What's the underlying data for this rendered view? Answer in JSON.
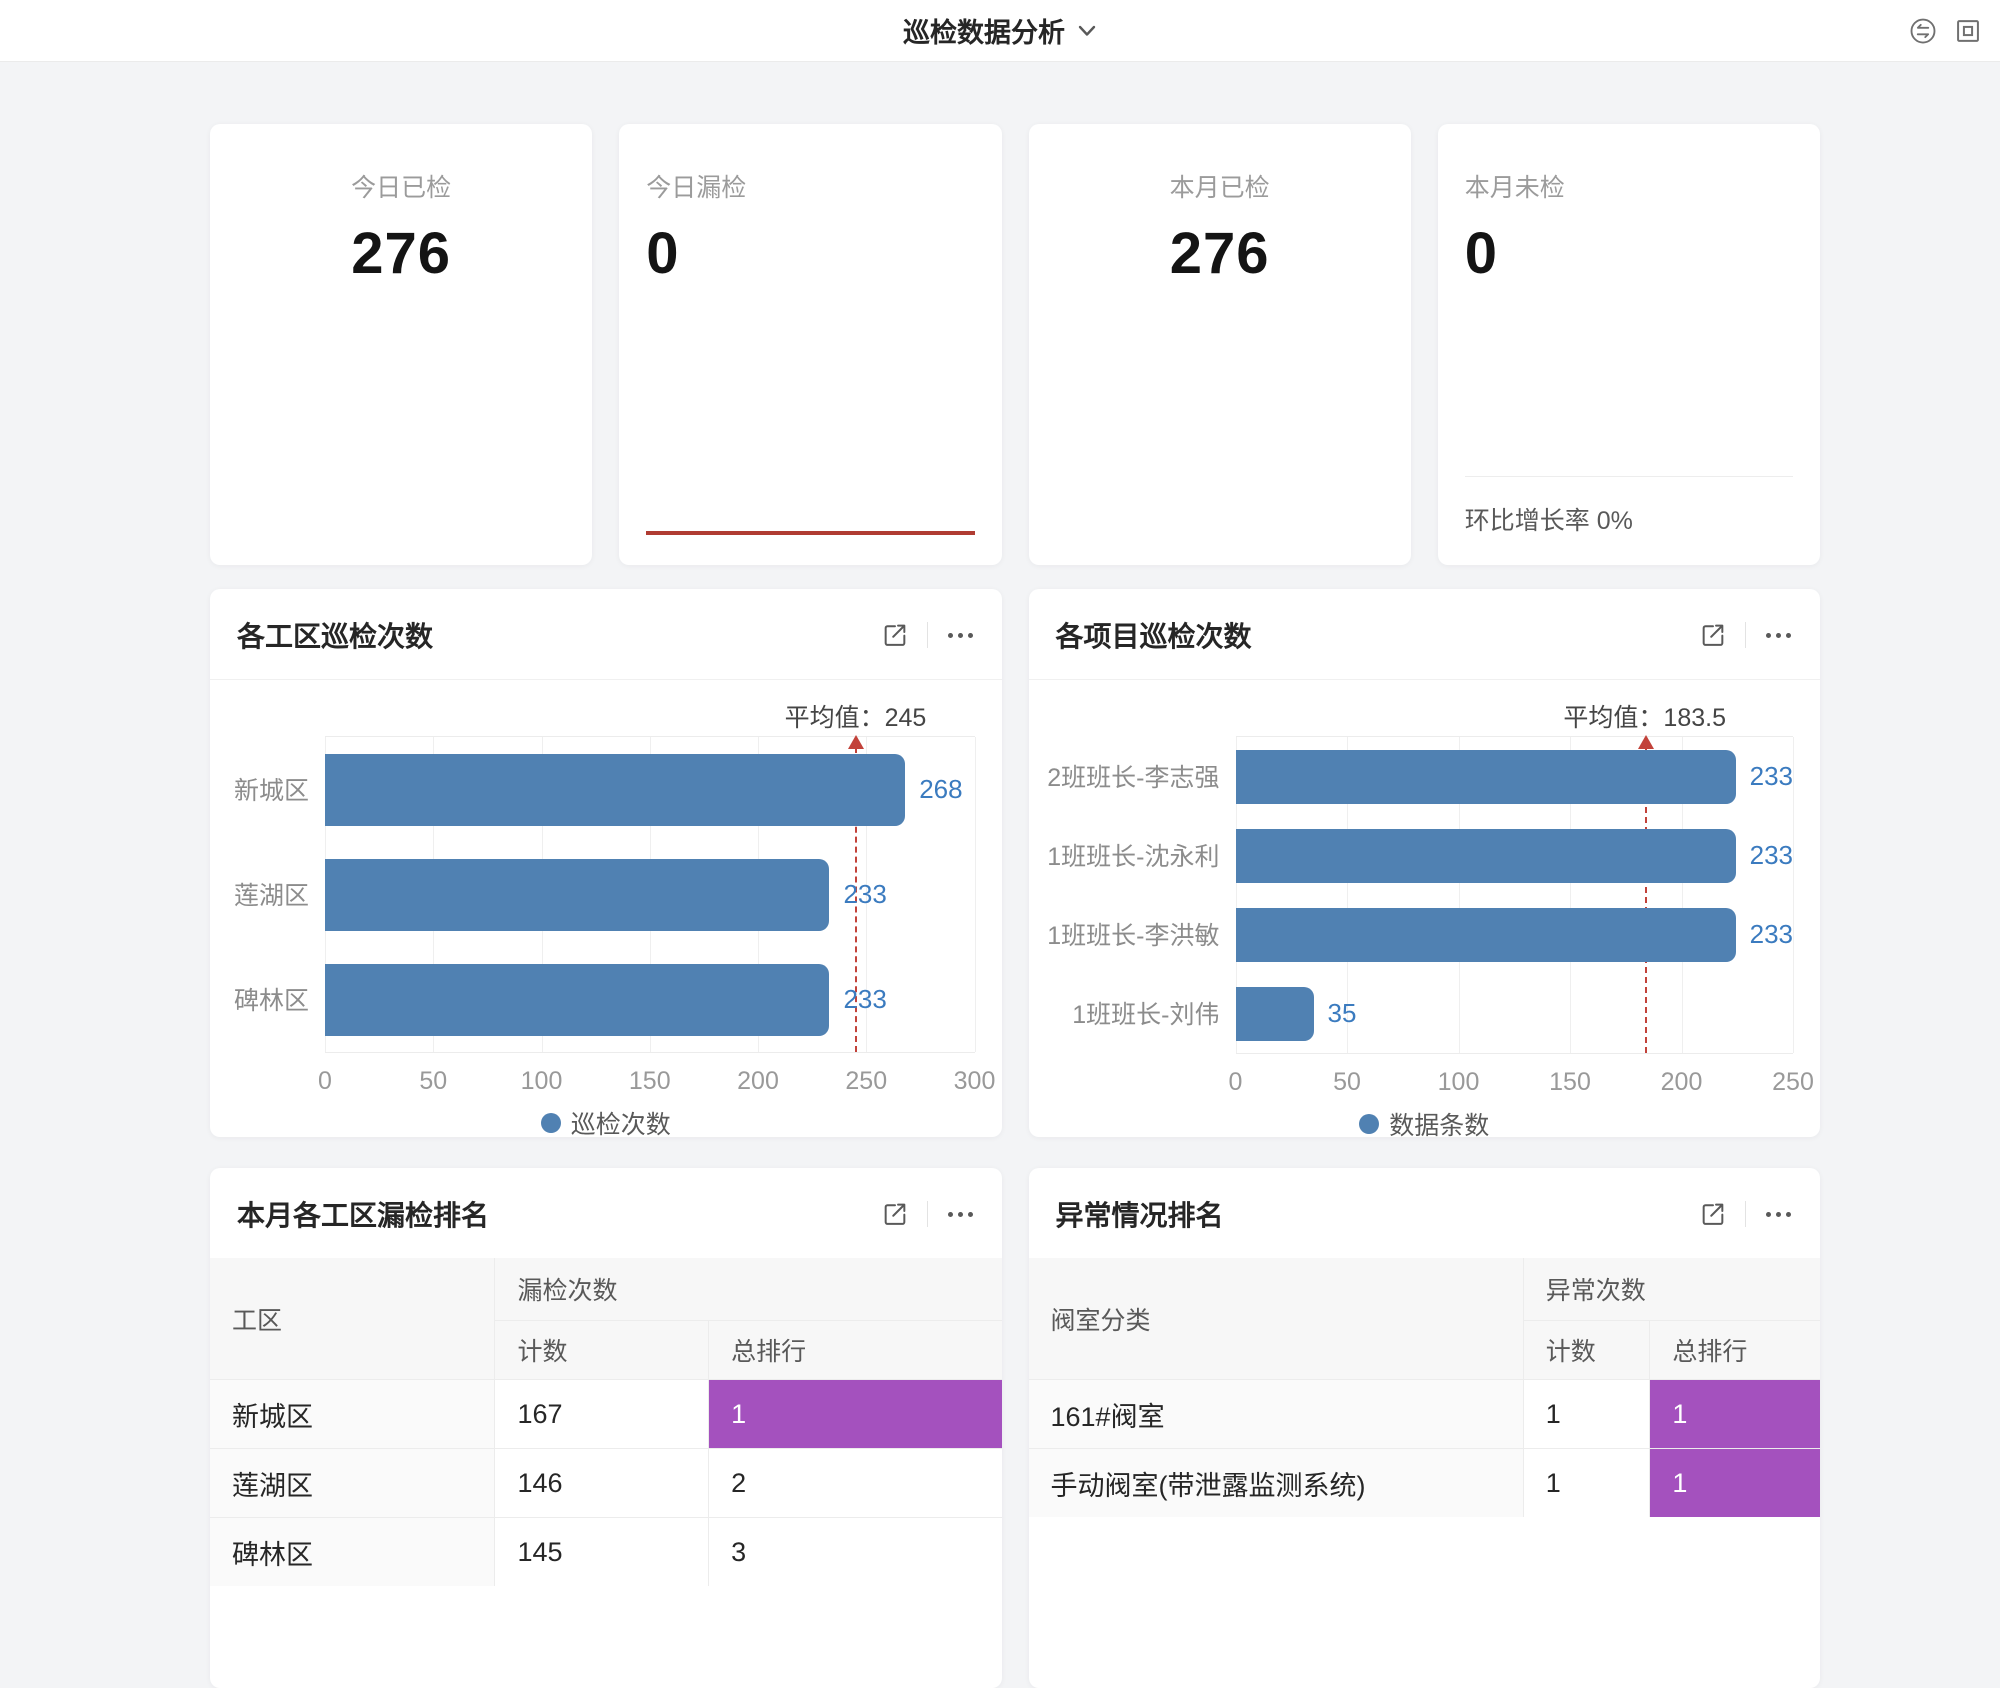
{
  "header": {
    "title": "巡检数据分析",
    "icons": {
      "dropdown": "chevron-down-icon",
      "sync": "sync-circle-icon",
      "frame": "windowed-mode-icon"
    }
  },
  "colors": {
    "bar_blue": "#5081b2",
    "value_blue": "#3b7bbf",
    "average_red": "#c2423a",
    "alert_red": "#b03c32",
    "rank_purple": "#a451be"
  },
  "stat_cards": [
    {
      "label": "今日已检",
      "value": "276",
      "align": "center"
    },
    {
      "label": "今日漏检",
      "value": "0",
      "align": "left",
      "trend_line": true
    },
    {
      "label": "本月已检",
      "value": "276",
      "align": "center"
    },
    {
      "label": "本月未检",
      "value": "0",
      "align": "left",
      "footer": "环比增长率 0%"
    }
  ],
  "chart_data": [
    {
      "type": "bar",
      "orientation": "horizontal",
      "title": "各工区巡检次数",
      "categories": [
        "新城区",
        "莲湖区",
        "碑林区"
      ],
      "values": [
        268,
        233,
        233
      ],
      "average": 245,
      "average_label": "平均值：245",
      "xlim": [
        0,
        300
      ],
      "xticks": [
        0,
        50,
        100,
        150,
        200,
        250,
        300
      ],
      "grid": "vertical-lines",
      "legend": "巡检次数",
      "legend_position": "bottom-center"
    },
    {
      "type": "bar",
      "orientation": "horizontal",
      "title": "各项目巡检次数",
      "categories": [
        "2班班长-李志强",
        "1班班长-沈永利",
        "1班班长-李洪敏",
        "1班班长-刘伟"
      ],
      "values": [
        233,
        233,
        233,
        35
      ],
      "average": 183.5,
      "average_label": "平均值：183.5",
      "xlim": [
        0,
        250
      ],
      "xticks": [
        0,
        50,
        100,
        150,
        200,
        250
      ],
      "grid": "vertical-lines",
      "legend": "数据条数",
      "legend_position": "bottom-center"
    }
  ],
  "tables": [
    {
      "title": "本月各工区漏检排名",
      "group_col": "工区",
      "group_header": "漏检次数",
      "sub_headers": [
        "计数",
        "总排行"
      ],
      "rows": [
        {
          "name": "新城区",
          "count": "167",
          "rank": "1",
          "rank_highlight": true
        },
        {
          "name": "莲湖区",
          "count": "146",
          "rank": "2",
          "rank_highlight": false
        },
        {
          "name": "碑林区",
          "count": "145",
          "rank": "3",
          "rank_highlight": false
        }
      ]
    },
    {
      "title": "异常情况排名",
      "group_col": "阀室分类",
      "group_header": "异常次数",
      "sub_headers": [
        "计数",
        "总排行"
      ],
      "rows": [
        {
          "name": "161#阀室",
          "count": "1",
          "rank": "1",
          "rank_highlight": true
        },
        {
          "name": "手动阀室(带泄露监测系统)",
          "count": "1",
          "rank": "1",
          "rank_highlight": true
        }
      ]
    }
  ]
}
